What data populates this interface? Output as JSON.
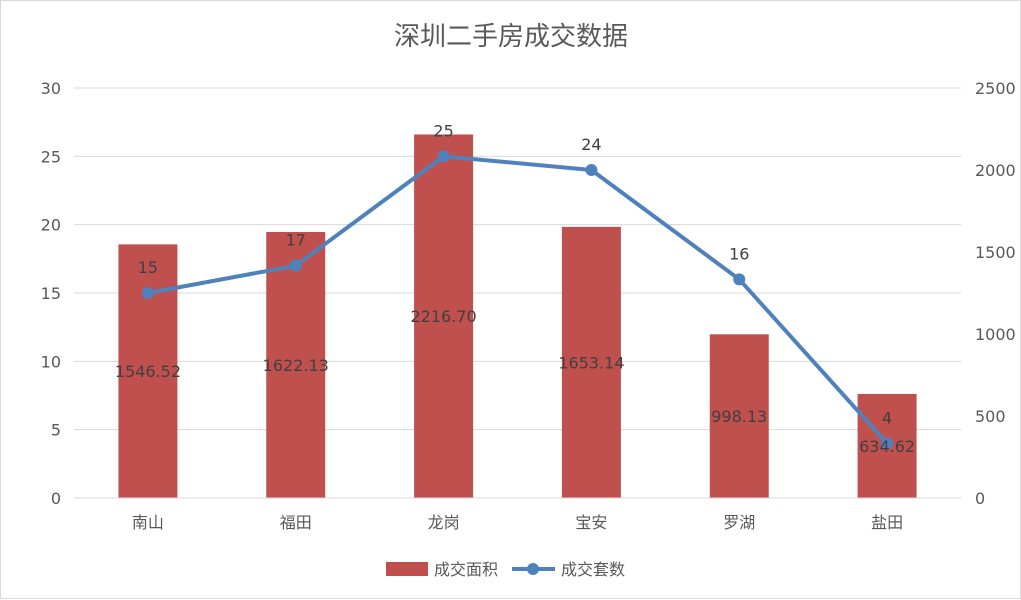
{
  "chart_data": {
    "type": "bar",
    "title": "深圳二手房成交数据",
    "categories": [
      "南山",
      "福田",
      "龙岗",
      "宝安",
      "罗湖",
      "盐田"
    ],
    "series": [
      {
        "name": "成交面积",
        "kind": "bar",
        "axis": "secondary",
        "color": "#c0504d",
        "values": [
          1546.52,
          1622.13,
          2216.7,
          1653.14,
          998.13,
          634.62
        ],
        "labels": [
          "1546.52",
          "1622.13",
          "2216.70",
          "1653.14",
          "998.13",
          "634.62"
        ]
      },
      {
        "name": "成交套数",
        "kind": "line",
        "axis": "primary",
        "color": "#4f81bd",
        "values": [
          15,
          17,
          25,
          24,
          16,
          4
        ],
        "labels": [
          "15",
          "17",
          "25",
          "24",
          "16",
          "4"
        ]
      }
    ],
    "y_primary": {
      "min": 0,
      "max": 30,
      "ticks": [
        "0",
        "5",
        "10",
        "15",
        "20",
        "25",
        "30"
      ]
    },
    "y_secondary": {
      "min": 0,
      "max": 2500,
      "ticks": [
        "0",
        "500",
        "1000",
        "1500",
        "2000",
        "2500"
      ]
    },
    "grid": true,
    "legend": {
      "position": "bottom"
    }
  }
}
